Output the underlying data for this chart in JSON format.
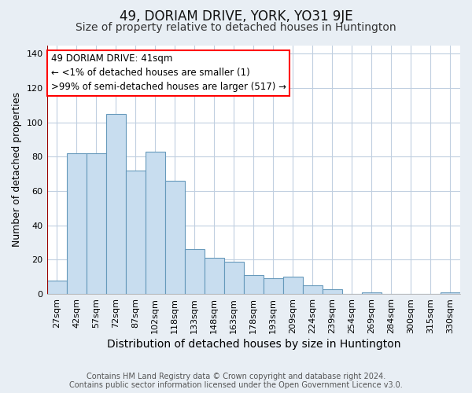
{
  "title": "49, DORIAM DRIVE, YORK, YO31 9JE",
  "subtitle": "Size of property relative to detached houses in Huntington",
  "xlabel": "Distribution of detached houses by size in Huntington",
  "ylabel": "Number of detached properties",
  "bar_color": "#c8ddef",
  "bar_edge_color": "#6699bb",
  "categories": [
    "27sqm",
    "42sqm",
    "57sqm",
    "72sqm",
    "87sqm",
    "102sqm",
    "118sqm",
    "133sqm",
    "148sqm",
    "163sqm",
    "178sqm",
    "193sqm",
    "209sqm",
    "224sqm",
    "239sqm",
    "254sqm",
    "269sqm",
    "284sqm",
    "300sqm",
    "315sqm",
    "330sqm"
  ],
  "values": [
    8,
    82,
    82,
    105,
    72,
    83,
    66,
    26,
    21,
    19,
    11,
    9,
    10,
    5,
    3,
    0,
    1,
    0,
    0,
    0,
    1
  ],
  "ylim": [
    0,
    145
  ],
  "yticks": [
    0,
    20,
    40,
    60,
    80,
    100,
    120,
    140
  ],
  "annotation_title": "49 DORIAM DRIVE: 41sqm",
  "annotation_line1": "← <1% of detached houses are smaller (1)",
  "annotation_line2": ">99% of semi-detached houses are larger (517) →",
  "footnote1": "Contains HM Land Registry data © Crown copyright and database right 2024.",
  "footnote2": "Contains public sector information licensed under the Open Government Licence v3.0.",
  "background_color": "#e8eef4",
  "plot_bg_color": "#ffffff",
  "grid_color": "#c0cfe0",
  "title_fontsize": 12,
  "subtitle_fontsize": 10,
  "xlabel_fontsize": 10,
  "ylabel_fontsize": 9,
  "tick_fontsize": 8,
  "footnote_fontsize": 7
}
